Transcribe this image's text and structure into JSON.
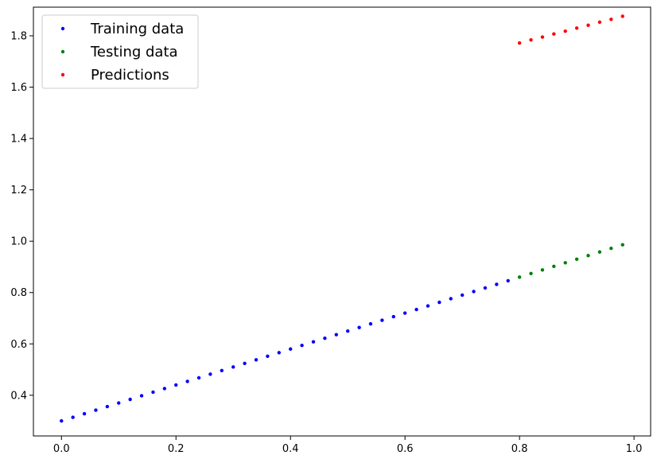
{
  "chart_data": {
    "type": "scatter",
    "title": "",
    "xlabel": "",
    "ylabel": "",
    "xlim": [
      -0.049,
      1.029
    ],
    "ylim": [
      0.2415,
      1.9115
    ],
    "x_ticks": [
      0.0,
      0.2,
      0.4,
      0.6,
      0.8,
      1.0
    ],
    "x_tick_labels": [
      "0.0",
      "0.2",
      "0.4",
      "0.6",
      "0.8",
      "1.0"
    ],
    "y_ticks": [
      0.4,
      0.6,
      0.8,
      1.0,
      1.2,
      1.4,
      1.6,
      1.8
    ],
    "y_tick_labels": [
      "0.4",
      "0.6",
      "0.8",
      "1.0",
      "1.2",
      "1.4",
      "1.6",
      "1.8"
    ],
    "grid": false,
    "legend_position": "top-left",
    "series": [
      {
        "name": "Training data",
        "color": "#0000ff",
        "points": [
          [
            0.0,
            0.3
          ],
          [
            0.02,
            0.314
          ],
          [
            0.04,
            0.328
          ],
          [
            0.06,
            0.342
          ],
          [
            0.08,
            0.356
          ],
          [
            0.1,
            0.37
          ],
          [
            0.12,
            0.384
          ],
          [
            0.14,
            0.398
          ],
          [
            0.16,
            0.412
          ],
          [
            0.18,
            0.426
          ],
          [
            0.2,
            0.44
          ],
          [
            0.22,
            0.454
          ],
          [
            0.24,
            0.468
          ],
          [
            0.26,
            0.482
          ],
          [
            0.28,
            0.496
          ],
          [
            0.3,
            0.51
          ],
          [
            0.32,
            0.524
          ],
          [
            0.34,
            0.538
          ],
          [
            0.36,
            0.552
          ],
          [
            0.38,
            0.566
          ],
          [
            0.4,
            0.58
          ],
          [
            0.42,
            0.594
          ],
          [
            0.44,
            0.608
          ],
          [
            0.46,
            0.622
          ],
          [
            0.48,
            0.636
          ],
          [
            0.5,
            0.65
          ],
          [
            0.52,
            0.664
          ],
          [
            0.54,
            0.678
          ],
          [
            0.56,
            0.692
          ],
          [
            0.58,
            0.706
          ],
          [
            0.6,
            0.72
          ],
          [
            0.62,
            0.734
          ],
          [
            0.64,
            0.748
          ],
          [
            0.66,
            0.762
          ],
          [
            0.68,
            0.776
          ],
          [
            0.7,
            0.79
          ],
          [
            0.72,
            0.804
          ],
          [
            0.74,
            0.818
          ],
          [
            0.76,
            0.832
          ],
          [
            0.78,
            0.846
          ]
        ]
      },
      {
        "name": "Testing data",
        "color": "#008000",
        "points": [
          [
            0.8,
            0.86
          ],
          [
            0.82,
            0.874
          ],
          [
            0.84,
            0.888
          ],
          [
            0.86,
            0.902
          ],
          [
            0.88,
            0.916
          ],
          [
            0.9,
            0.93
          ],
          [
            0.92,
            0.944
          ],
          [
            0.94,
            0.958
          ],
          [
            0.96,
            0.972
          ],
          [
            0.98,
            0.986
          ]
        ]
      },
      {
        "name": "Predictions",
        "color": "#ff0000",
        "points": [
          [
            0.8,
            1.772
          ],
          [
            0.82,
            1.784
          ],
          [
            0.84,
            1.795
          ],
          [
            0.86,
            1.807
          ],
          [
            0.88,
            1.818
          ],
          [
            0.9,
            1.83
          ],
          [
            0.92,
            1.841
          ],
          [
            0.94,
            1.853
          ],
          [
            0.96,
            1.864
          ],
          [
            0.98,
            1.876
          ]
        ]
      }
    ]
  }
}
